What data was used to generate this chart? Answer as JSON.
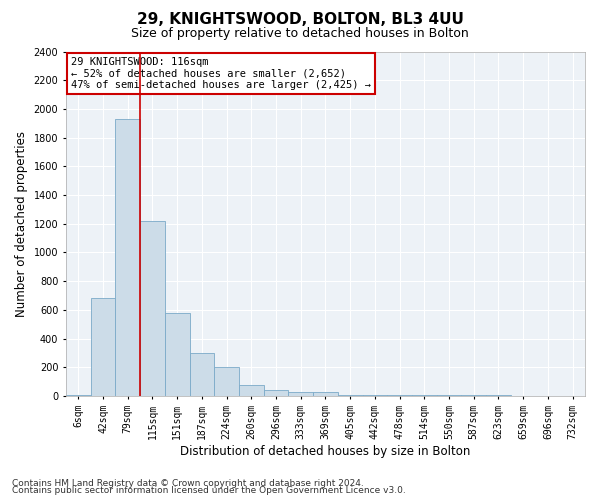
{
  "title": "29, KNIGHTSWOOD, BOLTON, BL3 4UU",
  "subtitle": "Size of property relative to detached houses in Bolton",
  "xlabel": "Distribution of detached houses by size in Bolton",
  "ylabel": "Number of detached properties",
  "categories": [
    "6sqm",
    "42sqm",
    "79sqm",
    "115sqm",
    "151sqm",
    "187sqm",
    "224sqm",
    "260sqm",
    "296sqm",
    "333sqm",
    "369sqm",
    "405sqm",
    "442sqm",
    "478sqm",
    "514sqm",
    "550sqm",
    "587sqm",
    "623sqm",
    "659sqm",
    "696sqm",
    "732sqm"
  ],
  "values": [
    10,
    680,
    1930,
    1220,
    580,
    300,
    200,
    75,
    40,
    30,
    25,
    10,
    10,
    10,
    10,
    5,
    5,
    5,
    3,
    2,
    2
  ],
  "bar_color": "#ccdce8",
  "bar_edge_color": "#7aaac8",
  "vline_x": 2.5,
  "vline_color": "#cc0000",
  "ylim": [
    0,
    2400
  ],
  "yticks": [
    0,
    200,
    400,
    600,
    800,
    1000,
    1200,
    1400,
    1600,
    1800,
    2000,
    2200,
    2400
  ],
  "annotation_text": "29 KNIGHTSWOOD: 116sqm\n← 52% of detached houses are smaller (2,652)\n47% of semi-detached houses are larger (2,425) →",
  "annotation_box_color": "#cc0000",
  "footer1": "Contains HM Land Registry data © Crown copyright and database right 2024.",
  "footer2": "Contains public sector information licensed under the Open Government Licence v3.0.",
  "background_color": "#edf2f7",
  "grid_color": "#ffffff",
  "title_fontsize": 11,
  "subtitle_fontsize": 9,
  "axis_label_fontsize": 8.5,
  "tick_fontsize": 7,
  "annotation_fontsize": 7.5,
  "footer_fontsize": 6.5
}
